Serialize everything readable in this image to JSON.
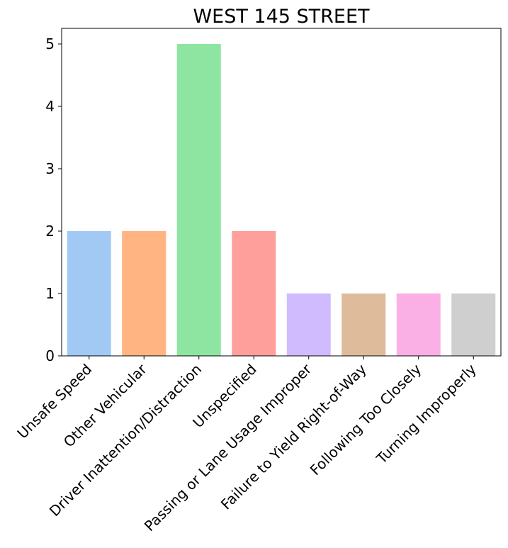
{
  "chart_data": {
    "type": "bar",
    "title": "WEST 145 STREET",
    "xlabel": "",
    "ylabel": "",
    "categories": [
      "Unsafe Speed",
      "Other Vehicular",
      "Driver Inattention/Distraction",
      "Unspecified",
      "Passing or Lane Usage Improper",
      "Failure to Yield Right-of-Way",
      "Following Too Closely",
      "Turning Improperly"
    ],
    "values": [
      2,
      2,
      5,
      2,
      1,
      1,
      1,
      1
    ],
    "colors": [
      "#a1c9f4",
      "#ffb482",
      "#8de5a1",
      "#ff9f9b",
      "#d0bbff",
      "#debb9b",
      "#fab0e4",
      "#cfcfcf"
    ],
    "ylim": [
      0,
      5.25
    ],
    "yticks": [
      "0",
      "1",
      "2",
      "3",
      "4",
      "5"
    ],
    "grid": false,
    "legend": "none"
  }
}
